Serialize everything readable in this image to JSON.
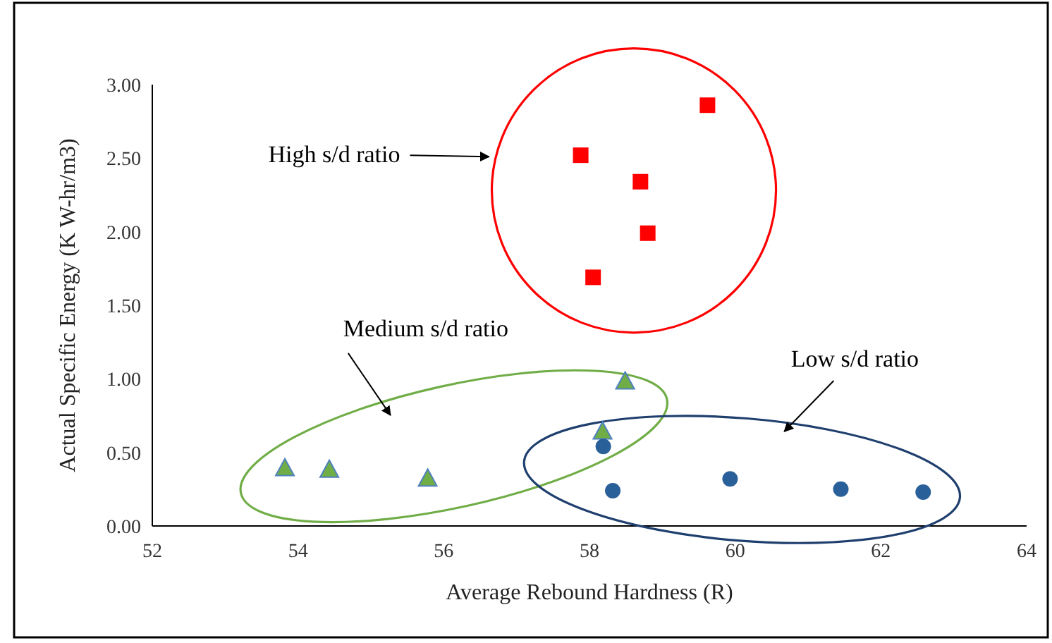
{
  "chart_data": {
    "type": "scatter",
    "xlabel": "Average Rebound Hardness (R)",
    "ylabel": "Actual Specific Energy (K W-hr/m3)",
    "xlim": [
      52,
      64
    ],
    "xticks": [
      52,
      54,
      56,
      58,
      60,
      62,
      64
    ],
    "ylim": [
      0,
      3
    ],
    "yticks": [
      {
        "value": 0,
        "label": "0.00"
      },
      {
        "value": 0.5,
        "label": "0.50"
      },
      {
        "value": 1,
        "label": "1.00"
      },
      {
        "value": 1.5,
        "label": "1.50"
      },
      {
        "value": 2,
        "label": "2.00"
      },
      {
        "value": 2.5,
        "label": "2.50"
      },
      {
        "value": 3,
        "label": "3.00"
      }
    ],
    "grid": false,
    "series": [
      {
        "color": "#ff0000",
        "marker": "square",
        "x": [
          59.62,
          57.88,
          58.7,
          58.8,
          58.05
        ],
        "values": [
          2.86,
          2.52,
          2.34,
          1.99,
          1.69
        ]
      },
      {
        "color": "#70ad47",
        "marker": "triangle",
        "x": [
          53.82,
          54.43,
          55.78,
          58.18,
          58.49
        ],
        "values": [
          0.39,
          0.38,
          0.32,
          0.64,
          0.98
        ]
      },
      {
        "color": "#2a6099",
        "marker": "circle",
        "x": [
          58.19,
          58.32,
          59.93,
          61.45,
          62.58
        ],
        "values": [
          0.54,
          0.24,
          0.32,
          0.25,
          0.23
        ]
      }
    ],
    "annotations": [
      "High s/d ratio",
      "Medium s/d ratio",
      "Low s/d ratio"
    ]
  }
}
